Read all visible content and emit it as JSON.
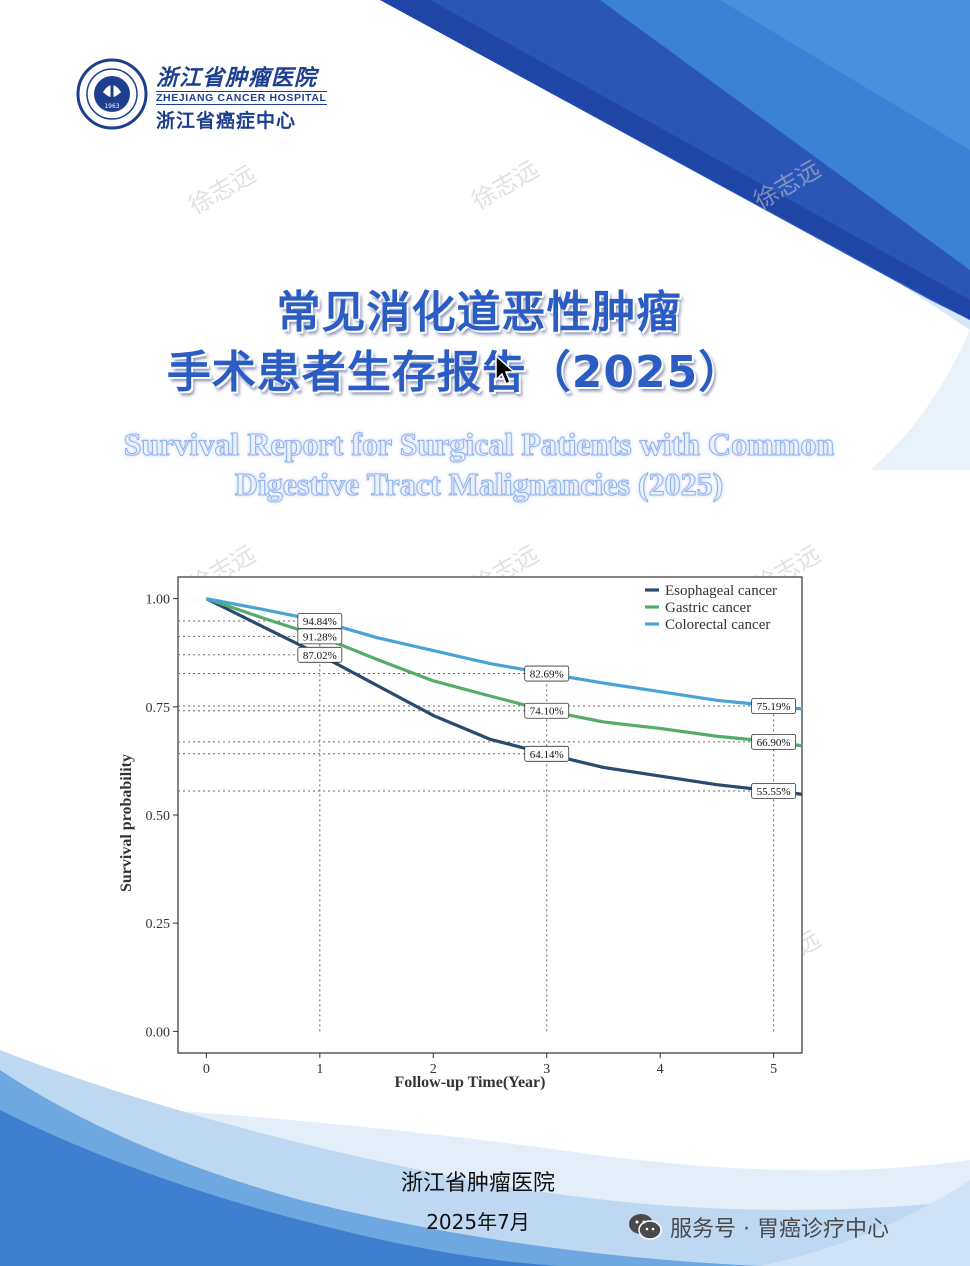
{
  "header": {
    "logo_seal_text": "ZHEJIANG CANCER HOSPITAL 1963",
    "hospital_name_cn": "浙江省肿瘤医院",
    "hospital_name_en": "ZHEJIANG CANCER HOSPITAL",
    "center_name_cn": "浙江省癌症中心"
  },
  "title": {
    "line1": "常见消化道恶性肿瘤",
    "line2": "手术患者生存报告（2025）",
    "en_line1": "Survival Report for Surgical Patients with Common",
    "en_line2": "Digestive Tract Malignancies (2025)"
  },
  "watermark": "徐志远",
  "chart_data": {
    "type": "line",
    "xlabel": "Follow-up Time(Year)",
    "ylabel": "Survival probability",
    "xlim": [
      -0.25,
      5.25
    ],
    "ylim": [
      -0.05,
      1.05
    ],
    "x_ticks": [
      "0",
      "1",
      "2",
      "3",
      "4",
      "5"
    ],
    "y_ticks": [
      "0.00",
      "0.25",
      "0.50",
      "0.75",
      "1.00"
    ],
    "grid": false,
    "legend_position": "top-right",
    "series": [
      {
        "name": "Esophageal cancer",
        "color": "#2b4a6f",
        "x": [
          0,
          0.5,
          1,
          1.5,
          2,
          2.5,
          3,
          3.5,
          4,
          4.5,
          5,
          5.25
        ],
        "y": [
          1.0,
          0.935,
          0.8702,
          0.8,
          0.73,
          0.675,
          0.6414,
          0.61,
          0.59,
          0.57,
          0.5555,
          0.548
        ]
      },
      {
        "name": "Gastric cancer",
        "color": "#56ab6b",
        "x": [
          0,
          0.5,
          1,
          1.5,
          2,
          2.5,
          3,
          3.5,
          4,
          4.5,
          5,
          5.25
        ],
        "y": [
          1.0,
          0.955,
          0.9128,
          0.86,
          0.81,
          0.775,
          0.741,
          0.715,
          0.7,
          0.682,
          0.669,
          0.66
        ]
      },
      {
        "name": "Colorectal cancer",
        "color": "#4aa3d6",
        "x": [
          0,
          0.5,
          1,
          1.5,
          2,
          2.5,
          3,
          3.5,
          4,
          4.5,
          5,
          5.25
        ],
        "y": [
          1.0,
          0.975,
          0.9484,
          0.91,
          0.88,
          0.85,
          0.8269,
          0.805,
          0.785,
          0.765,
          0.7519,
          0.745
        ]
      }
    ],
    "annotations": [
      {
        "x": 1,
        "y": 0.9484,
        "label": "94.84%"
      },
      {
        "x": 1,
        "y": 0.9128,
        "label": "91.28%"
      },
      {
        "x": 1,
        "y": 0.8702,
        "label": "87.02%"
      },
      {
        "x": 3,
        "y": 0.8269,
        "label": "82.69%"
      },
      {
        "x": 3,
        "y": 0.741,
        "label": "74.10%"
      },
      {
        "x": 3,
        "y": 0.6414,
        "label": "64.14%"
      },
      {
        "x": 5,
        "y": 0.7519,
        "label": "75.19%"
      },
      {
        "x": 5,
        "y": 0.669,
        "label": "66.90%"
      },
      {
        "x": 5,
        "y": 0.5555,
        "label": "55.55%"
      }
    ]
  },
  "footer": {
    "organization": "浙江省肿瘤医院",
    "date": "2025年7月",
    "wechat_label": "服务号 · 胃癌诊疗中心"
  },
  "colors": {
    "title_blue": "#2a5cc4",
    "band_dark": "#2a5bbf",
    "band_light": "#cfe3f7"
  }
}
